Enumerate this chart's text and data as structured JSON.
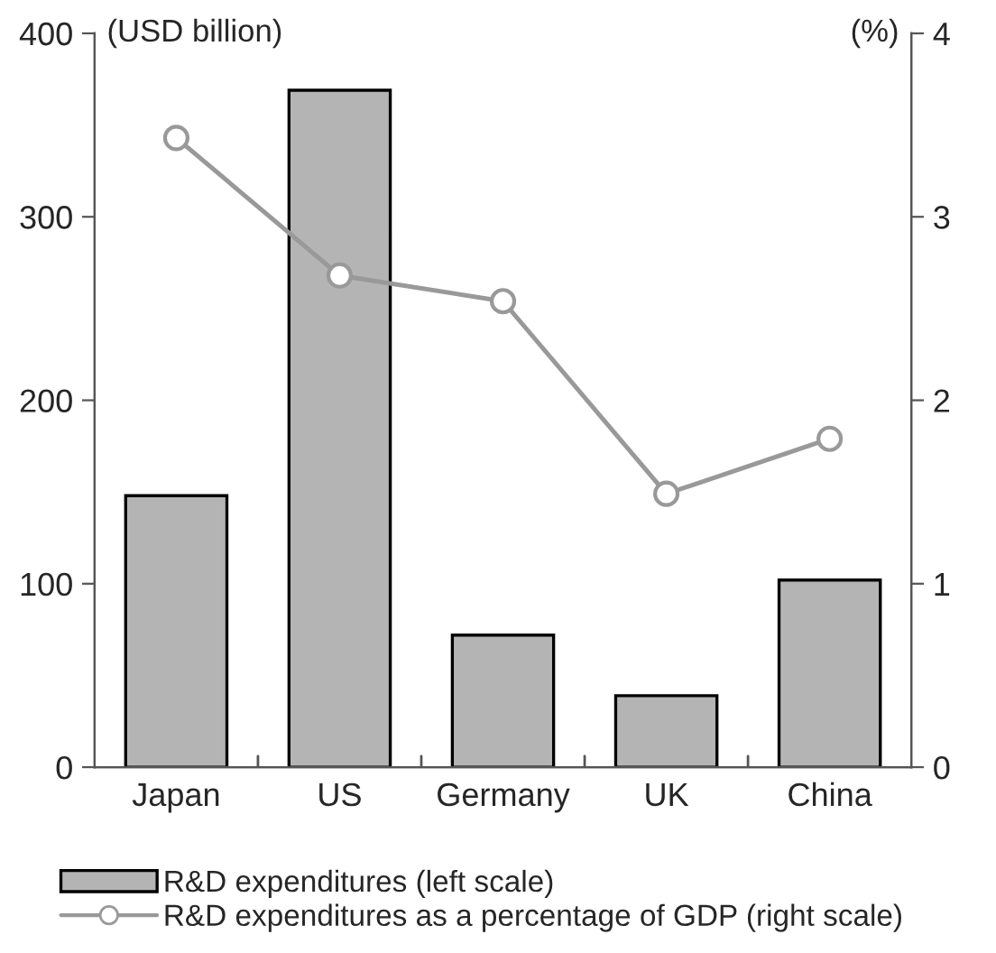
{
  "chart_data": {
    "type": "bar",
    "ylabel": "(USD billion)",
    "y2label": "(%)",
    "categories": [
      "Japan",
      "US",
      "Germany",
      "UK",
      "China"
    ],
    "series": [
      {
        "name": "R&D expenditures (left scale)",
        "color": "#b4b4b4",
        "values": [
          148,
          369,
          72,
          39,
          102
        ]
      },
      {
        "name": "R&D expenditures as a percentage of GDP (right scale)",
        "type": "line",
        "axis": "y2",
        "color": "#999999",
        "marker": "circle",
        "values": [
          3.43,
          2.68,
          2.54,
          1.49,
          1.79
        ]
      }
    ],
    "ylim": [
      0,
      400
    ],
    "yticks": [
      0,
      100,
      200,
      300,
      400
    ],
    "y2lim": [
      0,
      4
    ],
    "y2ticks": [
      0,
      1,
      2,
      3,
      4
    ],
    "grid": false,
    "legend": "bottom"
  }
}
